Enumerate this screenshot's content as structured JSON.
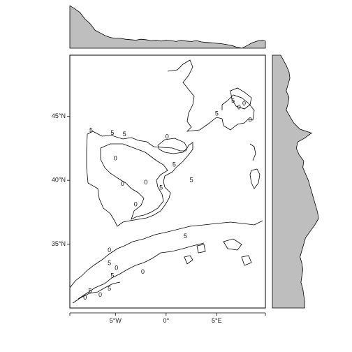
{
  "chart_data": {
    "type": "contour",
    "main_panel": {
      "x_ticks": [
        {
          "value": -5,
          "label": "5°W"
        },
        {
          "value": 0,
          "label": "0°"
        },
        {
          "value": 5,
          "label": "5°E"
        }
      ],
      "y_ticks": [
        {
          "value": 35,
          "label": "35°N"
        },
        {
          "value": 40,
          "label": "40°N"
        },
        {
          "value": 45,
          "label": "45°N"
        }
      ],
      "xlim": [
        -9.5,
        9.8
      ],
      "ylim": [
        30.0,
        49.8
      ],
      "contour_levels": [
        "0",
        "5"
      ],
      "contour_labels": [
        {
          "x": -7.4,
          "y": 43.9,
          "text": "5"
        },
        {
          "x": -5.3,
          "y": 43.7,
          "text": "5"
        },
        {
          "x": -4.1,
          "y": 43.6,
          "text": "5"
        },
        {
          "x": 0.1,
          "y": 43.4,
          "text": "0"
        },
        {
          "x": -5.0,
          "y": 41.7,
          "text": "0"
        },
        {
          "x": 0.8,
          "y": 41.2,
          "text": "5"
        },
        {
          "x": 2.5,
          "y": 40.0,
          "text": "5"
        },
        {
          "x": -2.0,
          "y": 39.8,
          "text": "0"
        },
        {
          "x": -0.5,
          "y": 39.4,
          "text": "5"
        },
        {
          "x": -4.3,
          "y": 39.7,
          "text": "0"
        },
        {
          "x": -3.0,
          "y": 38.1,
          "text": "0"
        },
        {
          "x": 1.9,
          "y": 35.6,
          "text": "5"
        },
        {
          "x": 6.6,
          "y": 46.2,
          "text": "5"
        },
        {
          "x": 5.0,
          "y": 45.2,
          "text": "5"
        },
        {
          "x": 7.2,
          "y": 45.7,
          "text": "0"
        },
        {
          "x": 7.7,
          "y": 46.0,
          "text": "0"
        },
        {
          "x": 8.3,
          "y": 44.7,
          "text": "0"
        },
        {
          "x": -5.6,
          "y": 34.5,
          "text": "0"
        },
        {
          "x": -5.6,
          "y": 33.5,
          "text": "5"
        },
        {
          "x": -4.9,
          "y": 33.1,
          "text": "0"
        },
        {
          "x": -5.3,
          "y": 32.5,
          "text": "5"
        },
        {
          "x": -2.3,
          "y": 32.8,
          "text": "0"
        },
        {
          "x": -7.5,
          "y": 31.3,
          "text": "5"
        },
        {
          "x": -5.6,
          "y": 31.5,
          "text": "5"
        },
        {
          "x": -6.5,
          "y": 31.0,
          "text": "0"
        },
        {
          "x": -8.0,
          "y": 30.8,
          "text": "0"
        }
      ]
    },
    "top_marginal": {
      "type": "area",
      "x": [
        -9.5,
        -9.0,
        -8.5,
        -8.0,
        -7.5,
        -7.0,
        -6.5,
        -6.0,
        -5.5,
        -5.0,
        -4.5,
        -4.0,
        -3.5,
        -3.0,
        -2.5,
        -2.0,
        -1.5,
        -1.0,
        -0.5,
        0.0,
        0.5,
        1.0,
        1.5,
        2.0,
        2.5,
        3.0,
        3.5,
        4.0,
        4.5,
        5.0,
        5.5,
        6.0,
        6.5,
        7.0,
        7.5,
        8.0,
        8.5,
        9.0,
        9.5,
        9.8
      ],
      "values": [
        0.95,
        0.88,
        0.8,
        0.65,
        0.55,
        0.4,
        0.34,
        0.28,
        0.24,
        0.22,
        0.22,
        0.2,
        0.19,
        0.18,
        0.2,
        0.19,
        0.17,
        0.18,
        0.16,
        0.18,
        0.17,
        0.15,
        0.18,
        0.16,
        0.15,
        0.17,
        0.14,
        0.13,
        0.12,
        0.11,
        0.1,
        0.08,
        0.06,
        0.02,
        0.0,
        0.06,
        0.12,
        0.16,
        0.18,
        0.16
      ]
    },
    "right_marginal": {
      "type": "area",
      "y": [
        49.8,
        49.0,
        48.5,
        48.0,
        47.5,
        47.0,
        46.5,
        46.0,
        45.5,
        45.0,
        44.5,
        44.0,
        43.7,
        43.3,
        43.0,
        42.5,
        42.0,
        41.5,
        41.0,
        40.5,
        40.0,
        39.5,
        39.0,
        38.5,
        38.0,
        37.5,
        37.0,
        36.5,
        36.0,
        35.5,
        35.0,
        34.5,
        34.0,
        33.5,
        33.0,
        32.5,
        32.0,
        31.5,
        31.0,
        30.5,
        30.0
      ],
      "values": [
        0.18,
        0.3,
        0.36,
        0.38,
        0.34,
        0.3,
        0.36,
        0.34,
        0.3,
        0.38,
        0.46,
        0.6,
        0.85,
        0.7,
        0.55,
        0.52,
        0.58,
        0.68,
        0.66,
        0.72,
        0.78,
        0.82,
        0.86,
        0.9,
        0.94,
        0.98,
        1.0,
        0.92,
        0.82,
        0.72,
        0.68,
        0.64,
        0.6,
        0.64,
        0.66,
        0.64,
        0.62,
        0.66,
        0.68,
        0.7,
        0.7
      ]
    }
  },
  "colors": {
    "marginal_fill": "#bebebe",
    "line": "#000000"
  }
}
